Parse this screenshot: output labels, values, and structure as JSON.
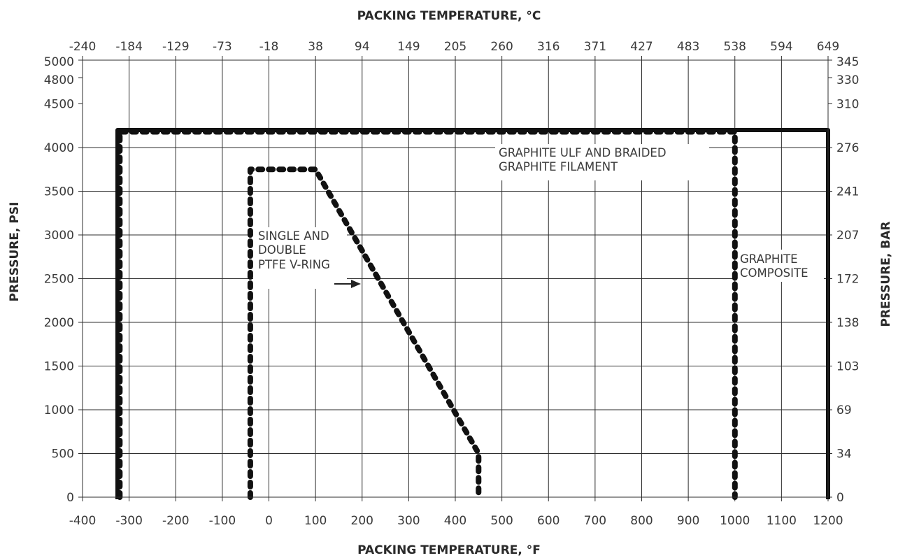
{
  "chart_data": {
    "type": "line",
    "title": "",
    "xlabel": "PACKING TEMPERATURE, °F",
    "x2label": "PACKING TEMPERATURE, °C",
    "ylabel": "PRESSURE, PSI",
    "y2label": "PRESSURE, BAR",
    "xlim": [
      -400,
      1200
    ],
    "ylim": [
      0,
      5000
    ],
    "grid": true,
    "x_ticks": [
      -400,
      -300,
      -200,
      -100,
      0,
      100,
      200,
      300,
      400,
      500,
      600,
      700,
      800,
      900,
      1000,
      1100,
      1200
    ],
    "x_tick_labels": [
      "-400",
      "-300",
      "-200",
      "-100",
      "0",
      "100",
      "200",
      "300",
      "400",
      "500",
      "600",
      "700",
      "800",
      "900",
      "1000",
      "1100",
      "1200"
    ],
    "x2_tick_labels": [
      "-240",
      "-184",
      "-129",
      "-73",
      "-18",
      "38",
      "94",
      "149",
      "205",
      "260",
      "316",
      "371",
      "427",
      "483",
      "538",
      "594",
      "649"
    ],
    "y_ticks": [
      0,
      500,
      1000,
      1500,
      2000,
      2500,
      3000,
      3500,
      4000,
      4500,
      4800,
      5000
    ],
    "y_tick_labels": [
      "0",
      "500",
      "1000",
      "1500",
      "2000",
      "2500",
      "3000",
      "3500",
      "4000",
      "4500",
      "4800",
      "5000"
    ],
    "y2_tick_labels": [
      "0",
      "34",
      "69",
      "103",
      "138",
      "172",
      "207",
      "241",
      "276",
      "310",
      "330",
      "345"
    ],
    "series": [
      {
        "name": "GRAPHITE COMPOSITE",
        "style": "solid",
        "color": "#111111",
        "x": [
          -325,
          -325,
          1200,
          1200
        ],
        "y": [
          0,
          4200,
          4200,
          0
        ]
      },
      {
        "name": "GRAPHITE ULF AND BRAIDED GRAPHITE FILAMENT",
        "style": "dotted",
        "color": "#111111",
        "x": [
          -320,
          -320,
          1000,
          1000
        ],
        "y": [
          0,
          4180,
          4180,
          0
        ]
      },
      {
        "name": "SINGLE AND DOUBLE PTFE V-RING",
        "style": "dotted",
        "color": "#111111",
        "x": [
          -40,
          -40,
          100,
          450,
          450
        ],
        "y": [
          0,
          3750,
          3750,
          500,
          0
        ]
      }
    ],
    "annotations": [
      {
        "lines": [
          "GRAPHITE ULF AND BRAIDED",
          "GRAPHITE FILAMENT"
        ]
      },
      {
        "lines": [
          "GRAPHITE",
          "COMPOSITE"
        ]
      },
      {
        "lines": [
          "SINGLE AND",
          "DOUBLE",
          "PTFE V-RING"
        ],
        "arrow": true
      }
    ]
  }
}
